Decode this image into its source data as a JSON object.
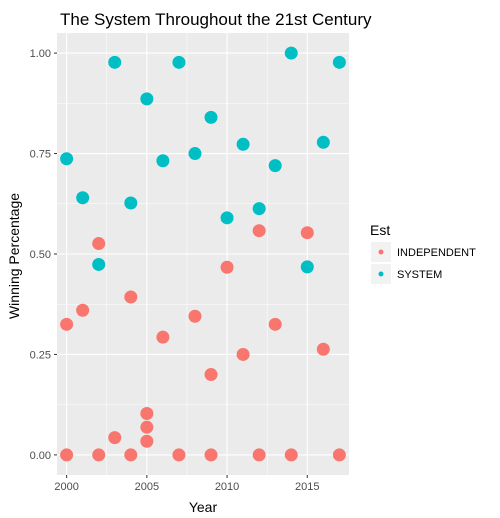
{
  "chart_data": {
    "type": "scatter",
    "title": "The System Throughout the 21st Century",
    "xlabel": "Year",
    "ylabel": "Winning Percentage",
    "xlim": [
      1999.4,
      2017.6
    ],
    "ylim": [
      -0.05,
      1.05
    ],
    "x_ticks": [
      2000,
      2005,
      2010,
      2015
    ],
    "y_ticks": [
      0.0,
      0.25,
      0.5,
      0.75,
      1.0
    ],
    "x_tick_labels": [
      "2000",
      "2005",
      "2010",
      "2015"
    ],
    "y_tick_labels": [
      "0.00",
      "0.25",
      "0.50",
      "0.75",
      "1.00"
    ],
    "grid": true,
    "panel_background": "#ebebeb",
    "legend": {
      "title": "Est",
      "position": "right",
      "entries": [
        "INDEPENDENT",
        "SYSTEM"
      ]
    },
    "series": [
      {
        "name": "INDEPENDENT",
        "color": "#f8766d",
        "points": [
          [
            2000,
            0.0
          ],
          [
            2000,
            0.325
          ],
          [
            2001,
            0.36
          ],
          [
            2002,
            0.0
          ],
          [
            2002,
            0.526
          ],
          [
            2003,
            0.043
          ],
          [
            2004,
            0.0
          ],
          [
            2004,
            0.393
          ],
          [
            2005,
            0.034
          ],
          [
            2005,
            0.069
          ],
          [
            2005,
            0.103
          ],
          [
            2006,
            0.293
          ],
          [
            2007,
            0.0
          ],
          [
            2008,
            0.345
          ],
          [
            2009,
            0.0
          ],
          [
            2009,
            0.2
          ],
          [
            2010,
            0.467
          ],
          [
            2011,
            0.25
          ],
          [
            2012,
            0.0
          ],
          [
            2012,
            0.558
          ],
          [
            2013,
            0.325
          ],
          [
            2014,
            0.0
          ],
          [
            2015,
            0.553
          ],
          [
            2016,
            0.263
          ],
          [
            2017,
            0.0
          ]
        ]
      },
      {
        "name": "SYSTEM",
        "color": "#00bfc4",
        "points": [
          [
            2000,
            0.737
          ],
          [
            2001,
            0.64
          ],
          [
            2002,
            0.474
          ],
          [
            2003,
            0.977
          ],
          [
            2004,
            0.627
          ],
          [
            2005,
            0.886
          ],
          [
            2006,
            0.732
          ],
          [
            2007,
            0.977
          ],
          [
            2008,
            0.75
          ],
          [
            2009,
            0.84
          ],
          [
            2010,
            0.59
          ],
          [
            2011,
            0.773
          ],
          [
            2012,
            0.613
          ],
          [
            2013,
            0.72
          ],
          [
            2014,
            1.0
          ],
          [
            2015,
            0.468
          ],
          [
            2016,
            0.778
          ],
          [
            2017,
            0.977
          ]
        ]
      }
    ]
  }
}
